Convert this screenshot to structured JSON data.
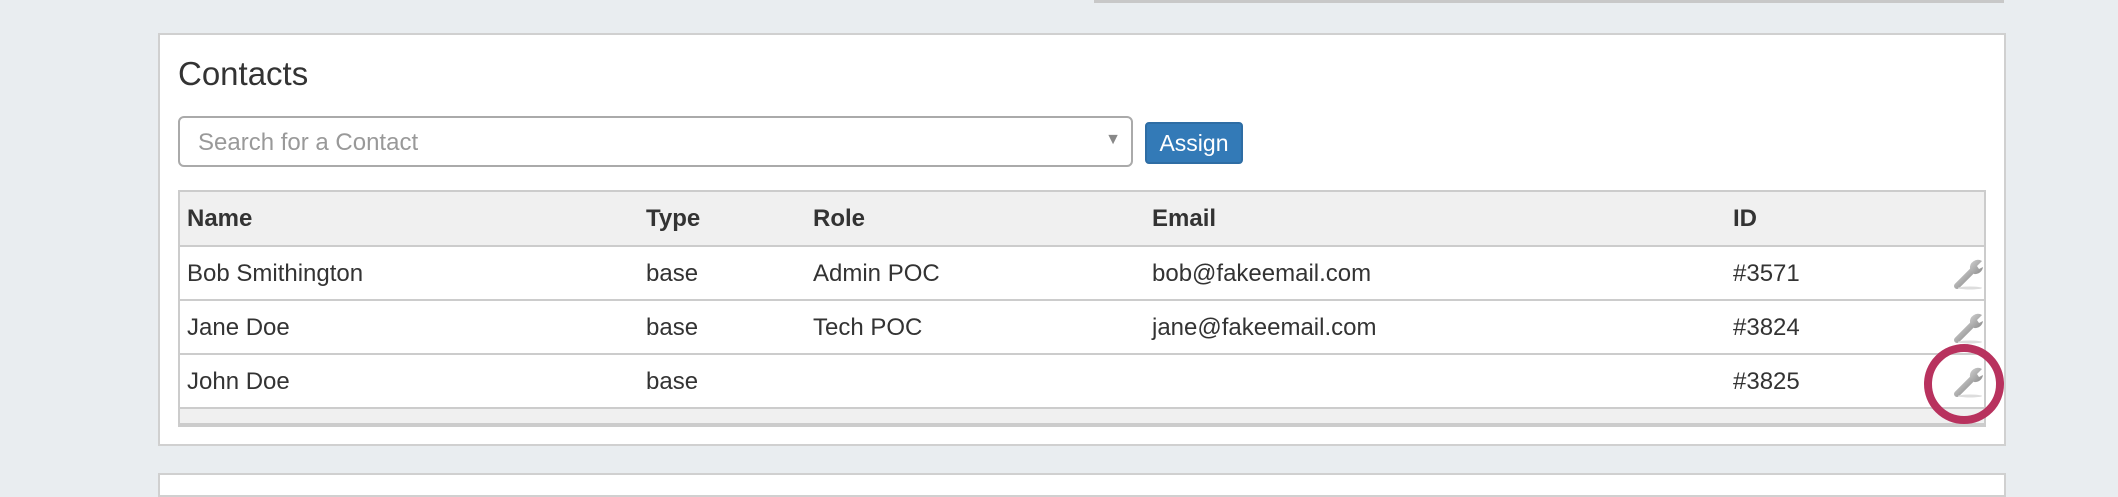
{
  "panel": {
    "title": "Contacts",
    "search_placeholder": "Search for a Contact",
    "assign_label": "Assign"
  },
  "table": {
    "headers": [
      "Name",
      "Type",
      "Role",
      "Email",
      "ID"
    ],
    "rows": [
      [
        "Bob Smithington",
        "base",
        "Admin POC",
        "bob@fakeemail.com",
        "#3571"
      ],
      [
        "Jane Doe",
        "base",
        "Tech POC",
        "jane@fakeemail.com",
        "#3824"
      ],
      [
        "John Doe",
        "base",
        "",
        "",
        "#3825"
      ]
    ],
    "row_action_icon": "wrench-icon"
  },
  "highlight": {
    "color": "#b8325e",
    "target": "row 3 wrench-icon"
  },
  "colors": {
    "accent": "#337ab7",
    "background": "#e9edf0"
  }
}
